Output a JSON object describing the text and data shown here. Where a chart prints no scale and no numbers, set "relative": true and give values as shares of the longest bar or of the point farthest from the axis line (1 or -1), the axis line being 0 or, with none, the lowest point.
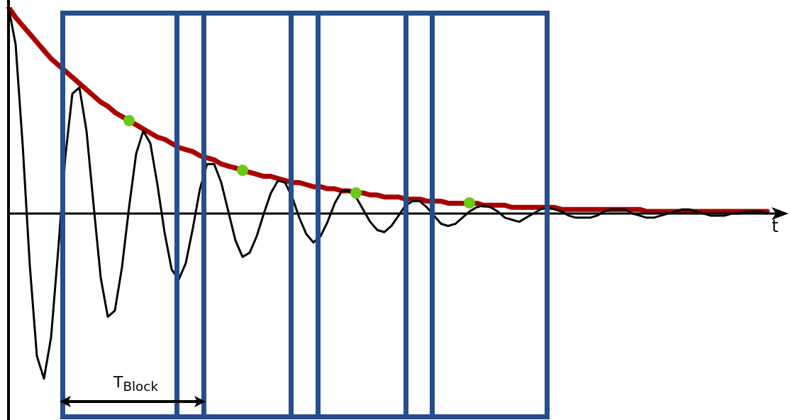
{
  "chart_data": {
    "type": "line",
    "relative": true,
    "xlabel": "t",
    "annotations": [
      "T$_{Block}$"
    ],
    "legend": false,
    "grid": false,
    "marker": "none",
    "line_style": "solid",
    "categories": [
      null,
      null,
      null,
      null,
      null,
      null,
      null,
      null,
      null,
      null,
      null,
      null,
      null,
      null,
      null,
      null,
      null,
      null,
      null,
      null,
      null,
      null,
      null,
      null,
      null,
      null,
      null,
      null,
      null,
      null,
      null,
      null,
      null,
      null,
      null,
      null,
      null,
      null,
      null,
      null,
      null,
      null,
      null,
      null,
      null,
      null,
      null,
      null,
      null,
      null,
      null,
      null,
      null,
      null,
      null,
      null,
      null,
      null,
      null,
      null,
      null,
      null,
      null,
      null,
      null,
      null,
      null,
      null,
      null,
      null,
      null,
      null,
      null,
      null,
      null,
      null,
      null,
      null,
      null,
      null,
      null,
      null,
      null,
      null,
      null,
      null,
      null,
      null,
      null,
      null,
      null,
      null,
      null,
      null,
      null,
      null,
      null,
      null,
      null,
      null,
      null,
      null,
      null,
      null,
      null,
      null,
      null,
      null
    ],
    "series": [
      {
        "color": "#aa0000",
        "values": [
          1,
          0.95,
          0.91,
          0.87,
          0.83,
          0.79,
          0.75,
          0.72,
          0.69,
          0.66,
          0.63,
          0.6,
          0.57,
          0.54,
          0.52,
          0.49,
          0.47,
          0.45,
          0.43,
          0.41,
          0.39,
          0.37,
          0.36,
          0.34,
          0.32,
          0.31,
          0.3,
          0.28,
          0.27,
          0.26,
          0.24,
          0.23,
          0.22,
          0.21,
          0.2,
          0.19,
          0.18,
          0.18,
          0.17,
          0.16,
          0.15,
          0.15,
          0.14,
          0.13,
          0.13,
          0.12,
          0.12,
          0.11,
          0.11,
          0.1,
          0.1,
          0.09,
          0.09,
          0.08,
          0.08,
          0.08,
          0.07,
          0.07,
          0.07,
          0.06,
          0.06,
          0.06,
          0.05,
          0.05,
          0.05,
          0.05,
          0.05,
          0.04,
          0.04,
          0.04,
          0.04,
          0.03,
          0.03,
          0.03,
          0.03,
          0.03,
          0.03,
          0.03,
          0.02,
          0.02,
          0.02,
          0.02,
          0.02,
          0.02,
          0.02,
          0.02,
          0.02,
          0.02,
          0.02,
          0.02,
          0.01,
          0.01,
          0.01,
          0.01,
          0.01,
          0.01,
          0.01,
          0.01,
          0.01,
          0.01,
          0.01,
          0.01,
          0.01,
          0.01,
          0.01,
          0.01,
          0.01,
          0.01
        ]
      },
      {
        "color": "#000000",
        "values": [
          1,
          0.82,
          0.33,
          -0.25,
          -0.69,
          -0.8,
          -0.6,
          -0.18,
          0.27,
          0.58,
          0.61,
          0.4,
          0.04,
          -0.31,
          -0.5,
          -0.47,
          -0.26,
          0.03,
          0.29,
          0.4,
          0.34,
          0.14,
          -0.09,
          -0.27,
          -0.32,
          -0.24,
          -0.07,
          0.12,
          0.24,
          0.24,
          0.15,
          0.01,
          -0.13,
          -0.21,
          -0.19,
          -0.11,
          0,
          0.1,
          0.16,
          0.15,
          0.08,
          -0.02,
          -0.1,
          -0.14,
          -0.11,
          -0.04,
          0.05,
          0.11,
          0.11,
          0.08,
          0.02,
          -0.04,
          -0.08,
          -0.09,
          -0.06,
          -0.01,
          0.04,
          0.06,
          0.06,
          0.03,
          -0.01,
          -0.05,
          -0.06,
          -0.05,
          -0.02,
          0.01,
          0.03,
          0.04,
          0.03,
          0.01,
          -0.02,
          -0.03,
          -0.04,
          -0.02,
          0,
          0.02,
          0.03,
          0.02,
          0.01,
          -0.01,
          -0.02,
          -0.02,
          -0.02,
          -0.01,
          0.01,
          0.02,
          0.02,
          0.02,
          0,
          -0.01,
          -0.02,
          -0.02,
          -0.01,
          0,
          0.01,
          0.02,
          0.02,
          0.01,
          0,
          -0.01,
          -0.01,
          -0.01,
          0,
          0,
          0.01,
          0.01,
          0.01,
          0
        ]
      }
    ]
  }
}
